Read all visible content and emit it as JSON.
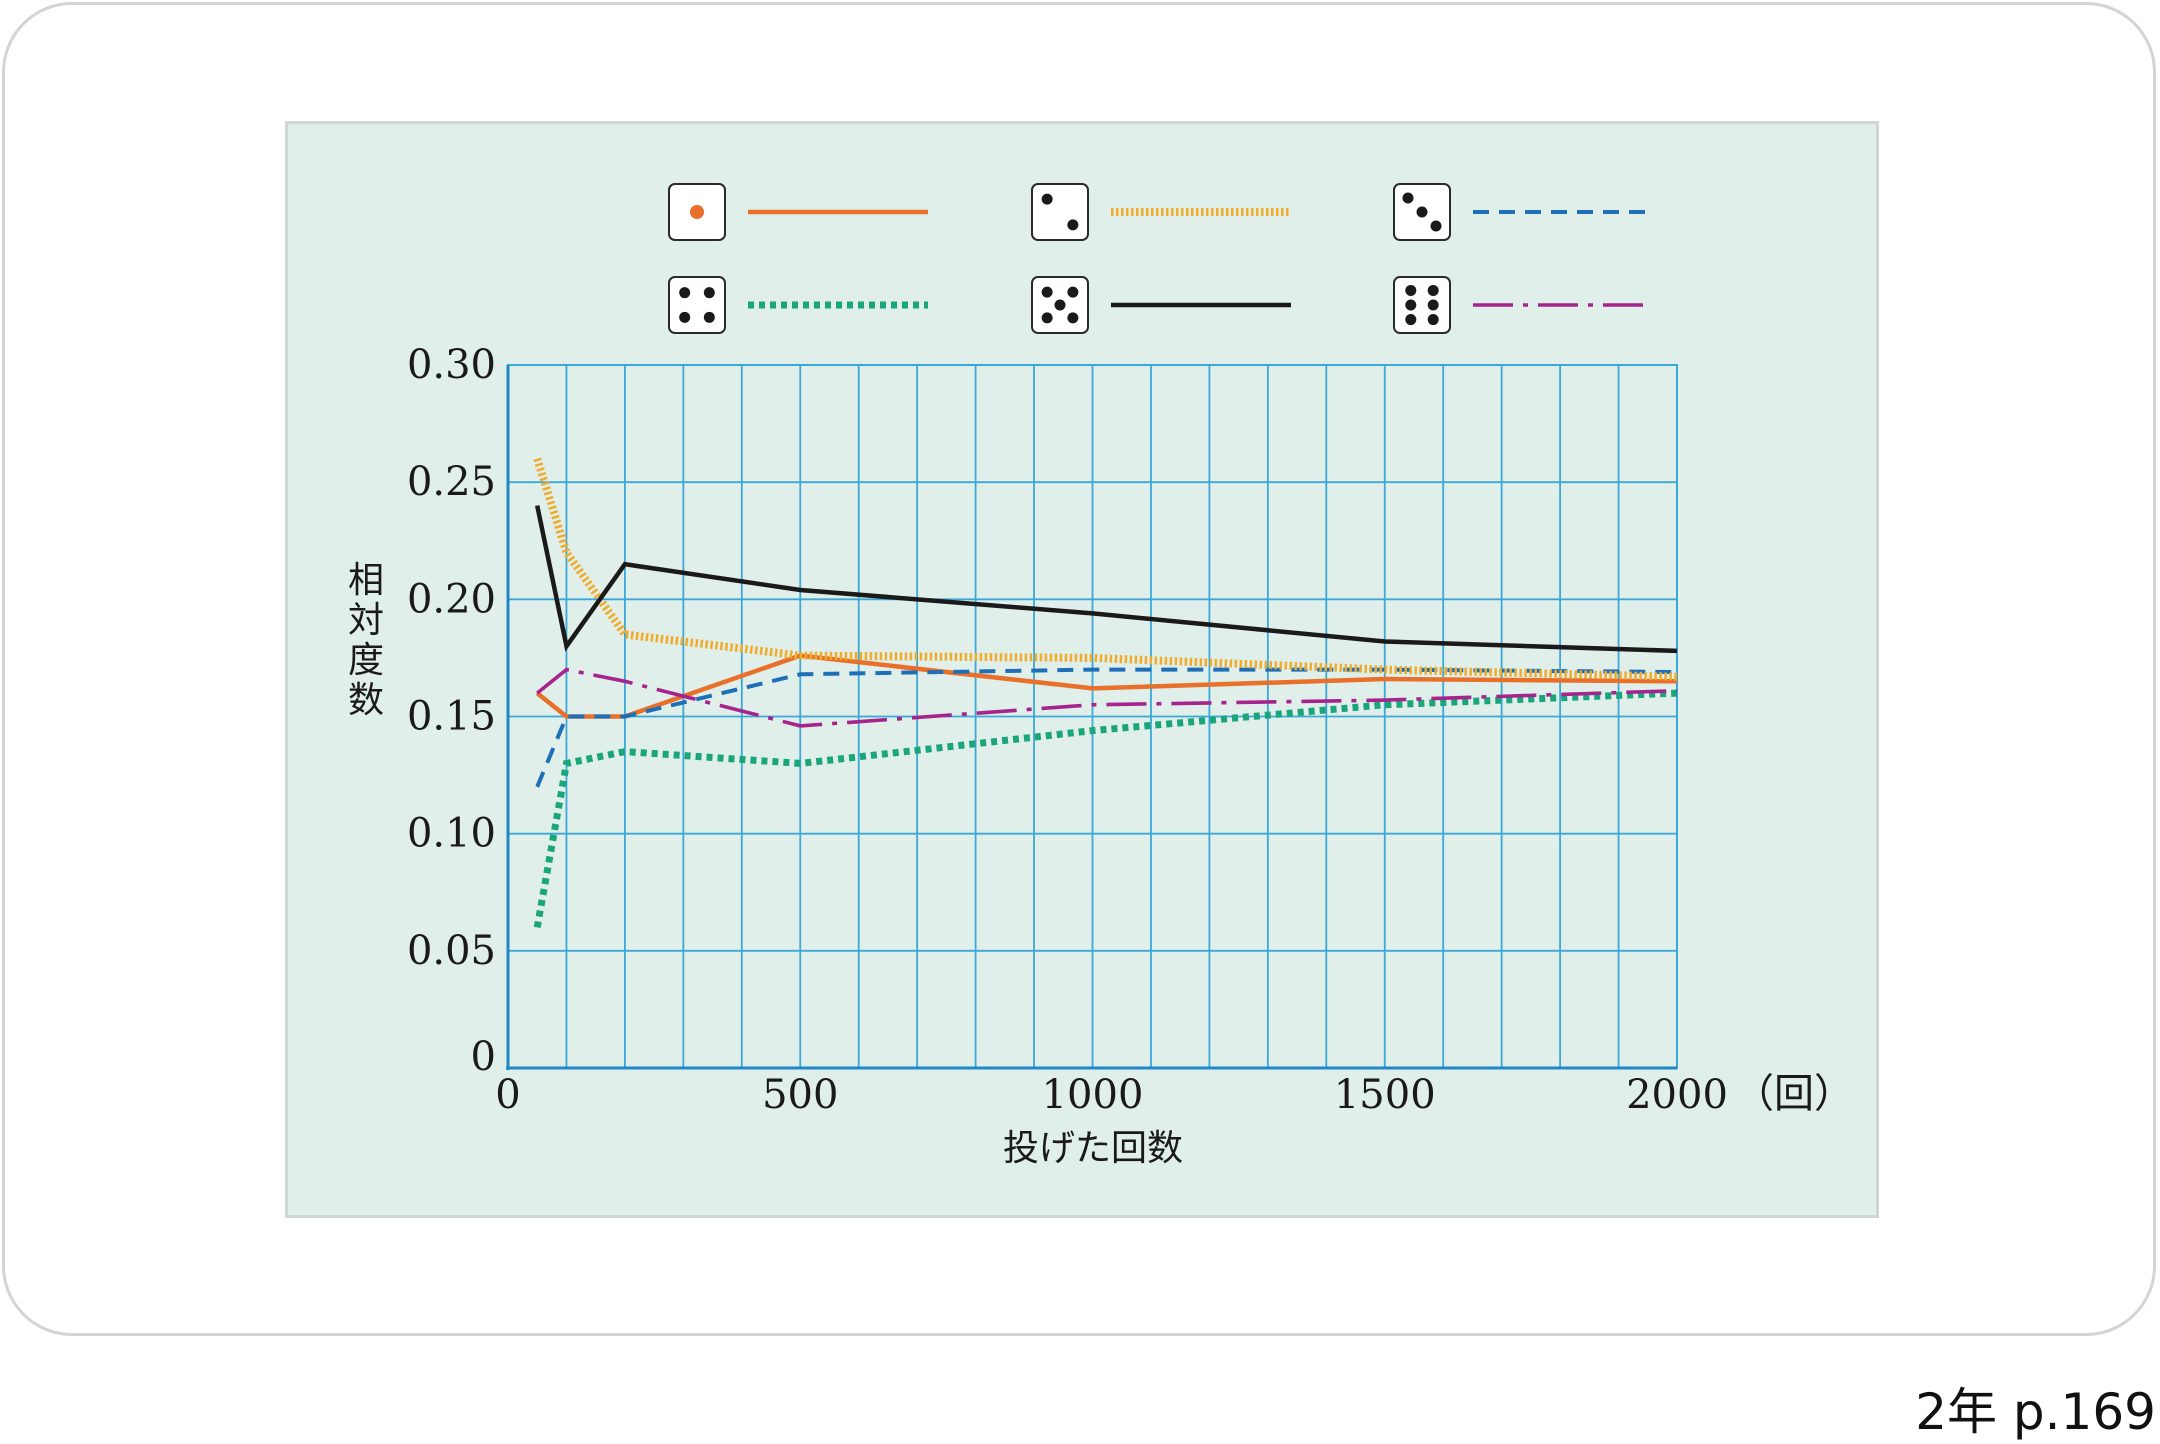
{
  "page_ref": "2年 p.169",
  "chart_data": {
    "type": "line",
    "xlabel": "投げた回数",
    "ylabel": "相対度数",
    "x_unit": "（回）",
    "xlim": [
      0,
      2000
    ],
    "ylim": [
      0,
      0.3
    ],
    "x_ticks": [
      "0",
      "500",
      "1000",
      "1500",
      "2000"
    ],
    "y_ticks": [
      "0",
      "0.05",
      "0.10",
      "0.15",
      "0.20",
      "0.25",
      "0.30"
    ],
    "grid": true,
    "legend_position": "top",
    "x": [
      50,
      100,
      200,
      500,
      1000,
      1500,
      2000
    ],
    "series": [
      {
        "die_face": 1,
        "color": "#e8702a",
        "style": "solid",
        "values": [
          0.16,
          0.15,
          0.15,
          0.176,
          0.162,
          0.166,
          0.165
        ]
      },
      {
        "die_face": 2,
        "color": "#f0ac2c",
        "style": "dotted",
        "values": [
          0.26,
          0.22,
          0.185,
          0.176,
          0.175,
          0.17,
          0.167
        ]
      },
      {
        "die_face": 3,
        "color": "#1f6fb8",
        "style": "dashed",
        "values": [
          0.12,
          0.15,
          0.15,
          0.168,
          0.17,
          0.17,
          0.169
        ]
      },
      {
        "die_face": 4,
        "color": "#1aa57a",
        "style": "dotted",
        "values": [
          0.06,
          0.13,
          0.135,
          0.13,
          0.144,
          0.155,
          0.16
        ]
      },
      {
        "die_face": 5,
        "color": "#1a1a1a",
        "style": "solid",
        "values": [
          0.24,
          0.18,
          0.215,
          0.204,
          0.194,
          0.182,
          0.178
        ]
      },
      {
        "die_face": 6,
        "color": "#a6248e",
        "style": "dashdot",
        "values": [
          0.16,
          0.17,
          0.165,
          0.146,
          0.155,
          0.157,
          0.161
        ]
      }
    ]
  }
}
